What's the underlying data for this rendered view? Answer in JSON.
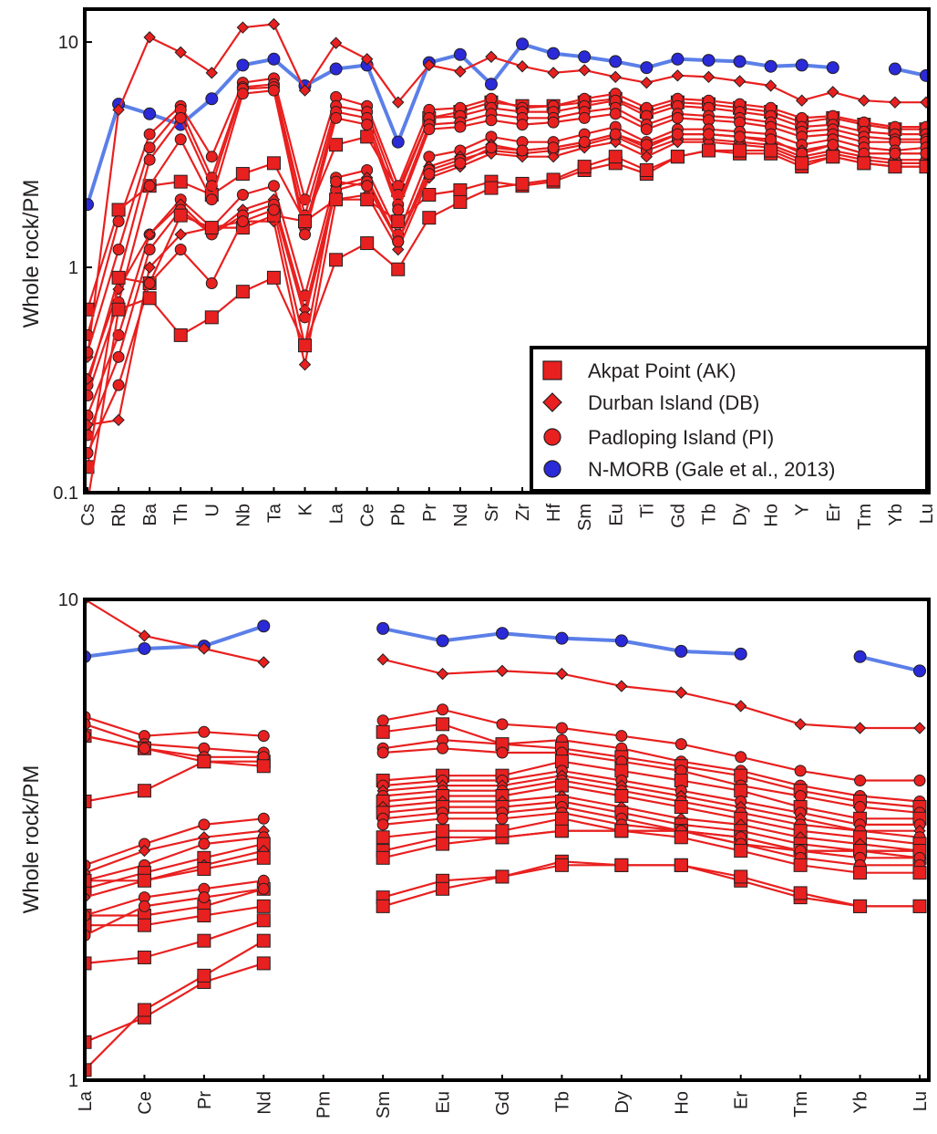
{
  "chart_data": [
    {
      "type": "line",
      "ylabel": "Whole rock/PM",
      "yscale": "log",
      "ylim": [
        0.1,
        14
      ],
      "yticks": [
        {
          "v": 0.1,
          "label": "0.1"
        },
        {
          "v": 1,
          "label": "1"
        },
        {
          "v": 10,
          "label": "10"
        }
      ],
      "categories": [
        "Cs",
        "Rb",
        "Ba",
        "Th",
        "U",
        "Nb",
        "Ta",
        "K",
        "La",
        "Ce",
        "Pb",
        "Pr",
        "Nd",
        "Sr",
        "Zr",
        "Hf",
        "Sm",
        "Eu",
        "Ti",
        "Gd",
        "Tb",
        "Dy",
        "Ho",
        "Y",
        "Er",
        "Tm",
        "Yb",
        "Lu"
      ],
      "legend": {
        "position": "bottom-right",
        "entries": [
          {
            "label": "Akpat Point (AK)",
            "marker": "square",
            "color": "#e8201f"
          },
          {
            "label": "Durban Island (DB)",
            "marker": "diamond",
            "color": "#e8201f"
          },
          {
            "label": "Padloping Island (PI)",
            "marker": "circle",
            "color": "#e8201f"
          },
          {
            "label": "N-MORB (Gale et al., 2013)",
            "marker": "circle",
            "color": "#2a2ad8"
          }
        ]
      },
      "series": [
        {
          "group": "N-MORB",
          "marker": "circle",
          "color": "#5b7fe8",
          "values": [
            1.9,
            5.3,
            4.8,
            4.3,
            5.6,
            7.9,
            8.4,
            6.4,
            7.6,
            7.9,
            3.6,
            8.1,
            8.8,
            6.5,
            9.8,
            8.9,
            8.6,
            8.2,
            7.7,
            8.4,
            8.3,
            8.2,
            7.8,
            7.9,
            7.7,
            null,
            7.6,
            7.1
          ]
        },
        {
          "group": "DB",
          "marker": "diamond",
          "color": "#e8201f",
          "values": [
            0.4,
            5.0,
            10.5,
            9.0,
            7.3,
            11.6,
            12.0,
            6.1,
            9.9,
            8.4,
            5.4,
            7.9,
            7.4,
            8.6,
            7.8,
            7.3,
            7.5,
            7.0,
            6.6,
            7.1,
            7.0,
            6.7,
            6.4,
            5.5,
            6.0,
            5.5,
            5.4,
            5.4
          ]
        },
        {
          "group": "AK",
          "marker": "square",
          "color": "#e8201f",
          "values": [
            0.65,
            1.8,
            2.3,
            2.4,
            2.1,
            2.6,
            2.9,
            1.6,
            3.5,
            3.8,
            2.2,
            4.6,
            4.9,
            5.4,
            5.2,
            5.2,
            5.4,
            5.6,
            4.9,
            5.4,
            5.3,
            5.1,
            4.9,
            4.4,
            4.6,
            4.3,
            4.1,
            4.1
          ]
        },
        {
          "group": "PI",
          "marker": "circle",
          "color": "#e8201f",
          "values": [
            0.5,
            1.6,
            3.9,
            5.2,
            3.1,
            6.6,
            6.9,
            2.0,
            5.7,
            5.2,
            2.3,
            5.0,
            5.1,
            5.6,
            5.1,
            5.2,
            5.6,
            5.9,
            5.1,
            5.6,
            5.5,
            5.3,
            5.1,
            4.6,
            4.7,
            4.4,
            4.2,
            4.2
          ]
        },
        {
          "group": "PI",
          "marker": "circle",
          "color": "#e8201f",
          "values": [
            0.42,
            1.2,
            3.4,
            5.0,
            2.5,
            6.3,
            6.5,
            1.7,
            5.2,
            4.9,
            2.1,
            4.6,
            4.7,
            5.1,
            4.9,
            4.9,
            5.2,
            5.5,
            4.7,
            5.2,
            5.1,
            4.9,
            4.7,
            4.2,
            4.3,
            4.0,
            3.9,
            3.9
          ]
        },
        {
          "group": "PI",
          "marker": "circle",
          "color": "#e8201f",
          "values": [
            0.3,
            0.9,
            3.0,
            4.6,
            2.3,
            6.2,
            6.3,
            1.5,
            4.9,
            4.6,
            1.9,
            4.3,
            4.4,
            4.8,
            4.6,
            4.6,
            4.9,
            5.1,
            4.3,
            4.8,
            4.7,
            4.6,
            4.4,
            4.0,
            4.1,
            3.8,
            3.7,
            3.7
          ]
        },
        {
          "group": "PI",
          "marker": "circle",
          "color": "#e8201f",
          "values": [
            0.27,
            0.7,
            2.3,
            3.7,
            2.0,
            5.9,
            6.1,
            1.4,
            4.6,
            4.3,
            1.8,
            4.1,
            4.2,
            4.5,
            4.3,
            4.4,
            4.6,
            4.8,
            4.1,
            4.6,
            4.5,
            4.4,
            4.2,
            3.8,
            3.9,
            3.6,
            3.6,
            3.6
          ]
        },
        {
          "group": "PI",
          "marker": "circle",
          "color": "#e8201f",
          "values": [
            0.22,
            0.5,
            1.4,
            2.0,
            1.5,
            2.1,
            2.3,
            0.75,
            2.5,
            2.7,
            1.4,
            3.1,
            3.3,
            3.8,
            3.6,
            3.6,
            3.9,
            4.2,
            3.6,
            4.1,
            4.1,
            4.0,
            3.9,
            3.5,
            3.7,
            3.4,
            3.3,
            3.4
          ]
        },
        {
          "group": "DB",
          "marker": "diamond",
          "color": "#e8201f",
          "values": [
            0.32,
            0.8,
            1.4,
            1.9,
            1.4,
            1.8,
            2.0,
            0.65,
            2.3,
            2.5,
            1.3,
            2.8,
            3.1,
            3.5,
            3.3,
            3.4,
            3.6,
            3.9,
            3.4,
            3.9,
            3.9,
            3.8,
            3.6,
            3.3,
            3.5,
            3.2,
            3.2,
            3.2
          ]
        },
        {
          "group": "PI",
          "marker": "circle",
          "color": "#e8201f",
          "values": [
            0.18,
            0.4,
            1.2,
            1.8,
            1.4,
            1.7,
            1.9,
            0.6,
            2.2,
            2.4,
            1.3,
            2.7,
            3.0,
            3.3,
            3.2,
            3.3,
            3.5,
            3.8,
            3.3,
            3.7,
            3.7,
            3.6,
            3.5,
            3.1,
            3.3,
            3.1,
            3.0,
            3.0
          ]
        },
        {
          "group": "DB",
          "marker": "diamond",
          "color": "#e8201f",
          "values": [
            0.2,
            0.21,
            1.0,
            1.4,
            1.5,
            1.6,
            1.6,
            0.37,
            2.0,
            2.1,
            1.2,
            2.5,
            2.8,
            3.2,
            3.1,
            3.1,
            3.4,
            3.6,
            3.1,
            3.6,
            3.6,
            3.5,
            3.4,
            3.0,
            3.2,
            3.0,
            2.9,
            2.9
          ]
        },
        {
          "group": "AK",
          "marker": "square",
          "color": "#e8201f",
          "values": [
            0.13,
            0.9,
            0.85,
            1.7,
            1.5,
            1.5,
            1.7,
            1.6,
            2.0,
            2.0,
            1.6,
            2.1,
            2.2,
            2.4,
            2.3,
            2.4,
            2.7,
            2.9,
            2.6,
            3.1,
            3.3,
            3.2,
            3.2,
            2.8,
            3.1,
            2.9,
            2.8,
            2.8
          ]
        },
        {
          "group": "PI",
          "marker": "circle",
          "color": "#e8201f",
          "values": [
            0.15,
            0.3,
            0.85,
            1.2,
            0.85,
            1.6,
            1.8,
            0.45,
            2.4,
            2.3,
            1.3,
            2.6,
            2.9,
            3.4,
            3.3,
            3.4,
            3.6,
            3.9,
            3.5,
            3.9,
            3.9,
            3.8,
            3.7,
            3.2,
            3.5,
            3.2,
            3.2,
            3.2
          ]
        },
        {
          "group": "AK",
          "marker": "square",
          "color": "#e8201f",
          "values": [
            0.09,
            0.65,
            0.73,
            0.5,
            0.6,
            0.78,
            0.9,
            0.45,
            1.08,
            1.28,
            0.98,
            1.66,
            1.95,
            2.25,
            2.35,
            2.45,
            2.8,
            3.1,
            2.7,
            3.1,
            3.3,
            3.3,
            3.3,
            2.9,
            3.1,
            2.9,
            2.8,
            2.8
          ]
        }
      ]
    },
    {
      "type": "line",
      "ylabel": "Whole rock/PM",
      "yscale": "log",
      "ylim": [
        1,
        10
      ],
      "yticks": [
        {
          "v": 1,
          "label": "1"
        },
        {
          "v": 10,
          "label": "10"
        }
      ],
      "categories": [
        "La",
        "Ce",
        "Pr",
        "Nd",
        "Pm",
        "Sm",
        "Eu",
        "Gd",
        "Tb",
        "Dy",
        "Ho",
        "Er",
        "Tm",
        "Yb",
        "Lu"
      ],
      "series": [
        {
          "group": "N-MORB",
          "marker": "circle",
          "color": "#5b7fe8",
          "values": [
            7.6,
            7.9,
            8.0,
            8.8,
            null,
            8.7,
            8.2,
            8.5,
            8.3,
            8.2,
            7.8,
            7.7,
            null,
            7.6,
            7.1
          ]
        },
        {
          "group": "DB",
          "marker": "diamond",
          "color": "#e8201f",
          "values": [
            10.0,
            8.4,
            7.9,
            7.4,
            null,
            7.5,
            7.0,
            7.1,
            7.0,
            6.6,
            6.4,
            6.0,
            5.5,
            5.4,
            5.4
          ]
        },
        {
          "group": "PI",
          "marker": "circle",
          "color": "#e8201f",
          "values": [
            5.7,
            5.2,
            5.3,
            5.2,
            null,
            5.6,
            5.9,
            5.5,
            5.4,
            5.2,
            5.0,
            4.7,
            4.4,
            4.2,
            4.2
          ]
        },
        {
          "group": "PI",
          "marker": "circle",
          "color": "#e8201f",
          "values": [
            5.5,
            5.0,
            4.9,
            4.8,
            null,
            4.9,
            5.1,
            5.0,
            5.1,
            4.9,
            4.6,
            4.4,
            4.1,
            3.9,
            3.8
          ]
        },
        {
          "group": "AK",
          "marker": "square",
          "color": "#e8201f",
          "values": [
            5.2,
            4.9,
            4.6,
            4.6,
            null,
            5.3,
            5.5,
            5.0,
            4.9,
            4.7,
            4.5,
            4.3,
            4.0,
            3.8,
            3.7
          ]
        },
        {
          "group": "PI",
          "marker": "circle",
          "color": "#e8201f",
          "values": [
            5.2,
            4.9,
            4.7,
            4.7,
            null,
            4.8,
            4.9,
            4.8,
            4.8,
            4.6,
            4.4,
            4.1,
            3.9,
            3.7,
            3.6
          ]
        },
        {
          "group": "AK",
          "marker": "square",
          "color": "#e8201f",
          "values": [
            3.8,
            4.0,
            4.6,
            4.5,
            null,
            4.2,
            4.3,
            4.3,
            4.6,
            4.4,
            4.2,
            4.0,
            3.7,
            3.5,
            3.5
          ]
        },
        {
          "group": "PI",
          "marker": "circle",
          "color": "#e8201f",
          "values": [
            2.8,
            3.1,
            3.4,
            3.5,
            null,
            4.1,
            4.2,
            4.2,
            4.4,
            4.2,
            4.0,
            3.8,
            3.6,
            3.4,
            3.4
          ]
        },
        {
          "group": "DB",
          "marker": "diamond",
          "color": "#e8201f",
          "values": [
            2.7,
            3.0,
            3.2,
            3.3,
            null,
            4.0,
            4.1,
            4.1,
            4.3,
            4.1,
            3.9,
            3.7,
            3.5,
            3.3,
            3.3
          ]
        },
        {
          "group": "PI",
          "marker": "circle",
          "color": "#e8201f",
          "values": [
            2.6,
            2.8,
            3.1,
            3.2,
            null,
            3.9,
            4.0,
            4.0,
            4.2,
            4.0,
            3.8,
            3.6,
            3.4,
            3.3,
            3.2
          ]
        },
        {
          "group": "AK",
          "marker": "square",
          "color": "#e8201f",
          "values": [
            2.5,
            2.7,
            2.9,
            3.1,
            null,
            3.8,
            3.9,
            3.9,
            4.1,
            3.9,
            3.7,
            3.5,
            3.3,
            3.2,
            3.1
          ]
        },
        {
          "group": "DB",
          "marker": "diamond",
          "color": "#e8201f",
          "values": [
            2.4,
            2.6,
            2.8,
            3.0,
            null,
            3.7,
            3.8,
            3.8,
            3.9,
            3.7,
            3.5,
            3.4,
            3.2,
            3.1,
            3.0
          ]
        },
        {
          "group": "AK",
          "marker": "square",
          "color": "#e8201f",
          "values": [
            2.6,
            2.6,
            2.75,
            2.9,
            null,
            3.6,
            3.7,
            3.7,
            3.8,
            3.6,
            3.4,
            3.3,
            3.1,
            3.0,
            2.9
          ]
        },
        {
          "group": "AK",
          "marker": "square",
          "color": "#e8201f",
          "values": [
            2.2,
            2.2,
            2.3,
            2.5,
            null,
            3.0,
            3.2,
            3.2,
            3.3,
            3.3,
            3.3,
            3.2,
            3.0,
            3.0,
            3.0
          ]
        },
        {
          "group": "AK",
          "marker": "square",
          "color": "#e8201f",
          "values": [
            2.1,
            2.1,
            2.2,
            2.3,
            null,
            2.9,
            3.1,
            3.2,
            3.3,
            3.3,
            3.3,
            3.1,
            3.0,
            3.0,
            3.0
          ]
        },
        {
          "group": "PI",
          "marker": "circle",
          "color": "#e8201f",
          "values": [
            2.2,
            2.4,
            2.5,
            2.6,
            null,
            3.5,
            3.6,
            3.6,
            3.7,
            3.5,
            3.3,
            3.2,
            3.0,
            2.9,
            2.9
          ]
        },
        {
          "group": "PI",
          "marker": "circle",
          "color": "#e8201f",
          "values": [
            2.0,
            2.3,
            2.4,
            2.5,
            null,
            3.4,
            3.5,
            3.5,
            3.6,
            3.4,
            3.3,
            3.1,
            2.9,
            2.8,
            2.8
          ]
        },
        {
          "group": "AK",
          "marker": "square",
          "color": "#e8201f",
          "values": [
            1.2,
            1.35,
            1.6,
            1.75,
            null,
            3.2,
            3.3,
            3.3,
            3.5,
            3.3,
            3.2,
            3.0,
            2.8,
            2.7,
            2.7
          ]
        },
        {
          "group": "AK",
          "marker": "square",
          "color": "#e8201f",
          "values": [
            1.75,
            1.8,
            1.95,
            2.15,
            null,
            2.4,
            2.6,
            2.65,
            2.85,
            2.8,
            2.8,
            2.6,
            2.4,
            2.3,
            2.3
          ]
        },
        {
          "group": "AK",
          "marker": "square",
          "color": "#e8201f",
          "values": [
            1.05,
            1.4,
            1.65,
            1.95,
            null,
            2.3,
            2.5,
            2.65,
            2.8,
            2.8,
            2.8,
            2.65,
            2.45,
            2.3,
            2.3
          ]
        }
      ]
    }
  ]
}
